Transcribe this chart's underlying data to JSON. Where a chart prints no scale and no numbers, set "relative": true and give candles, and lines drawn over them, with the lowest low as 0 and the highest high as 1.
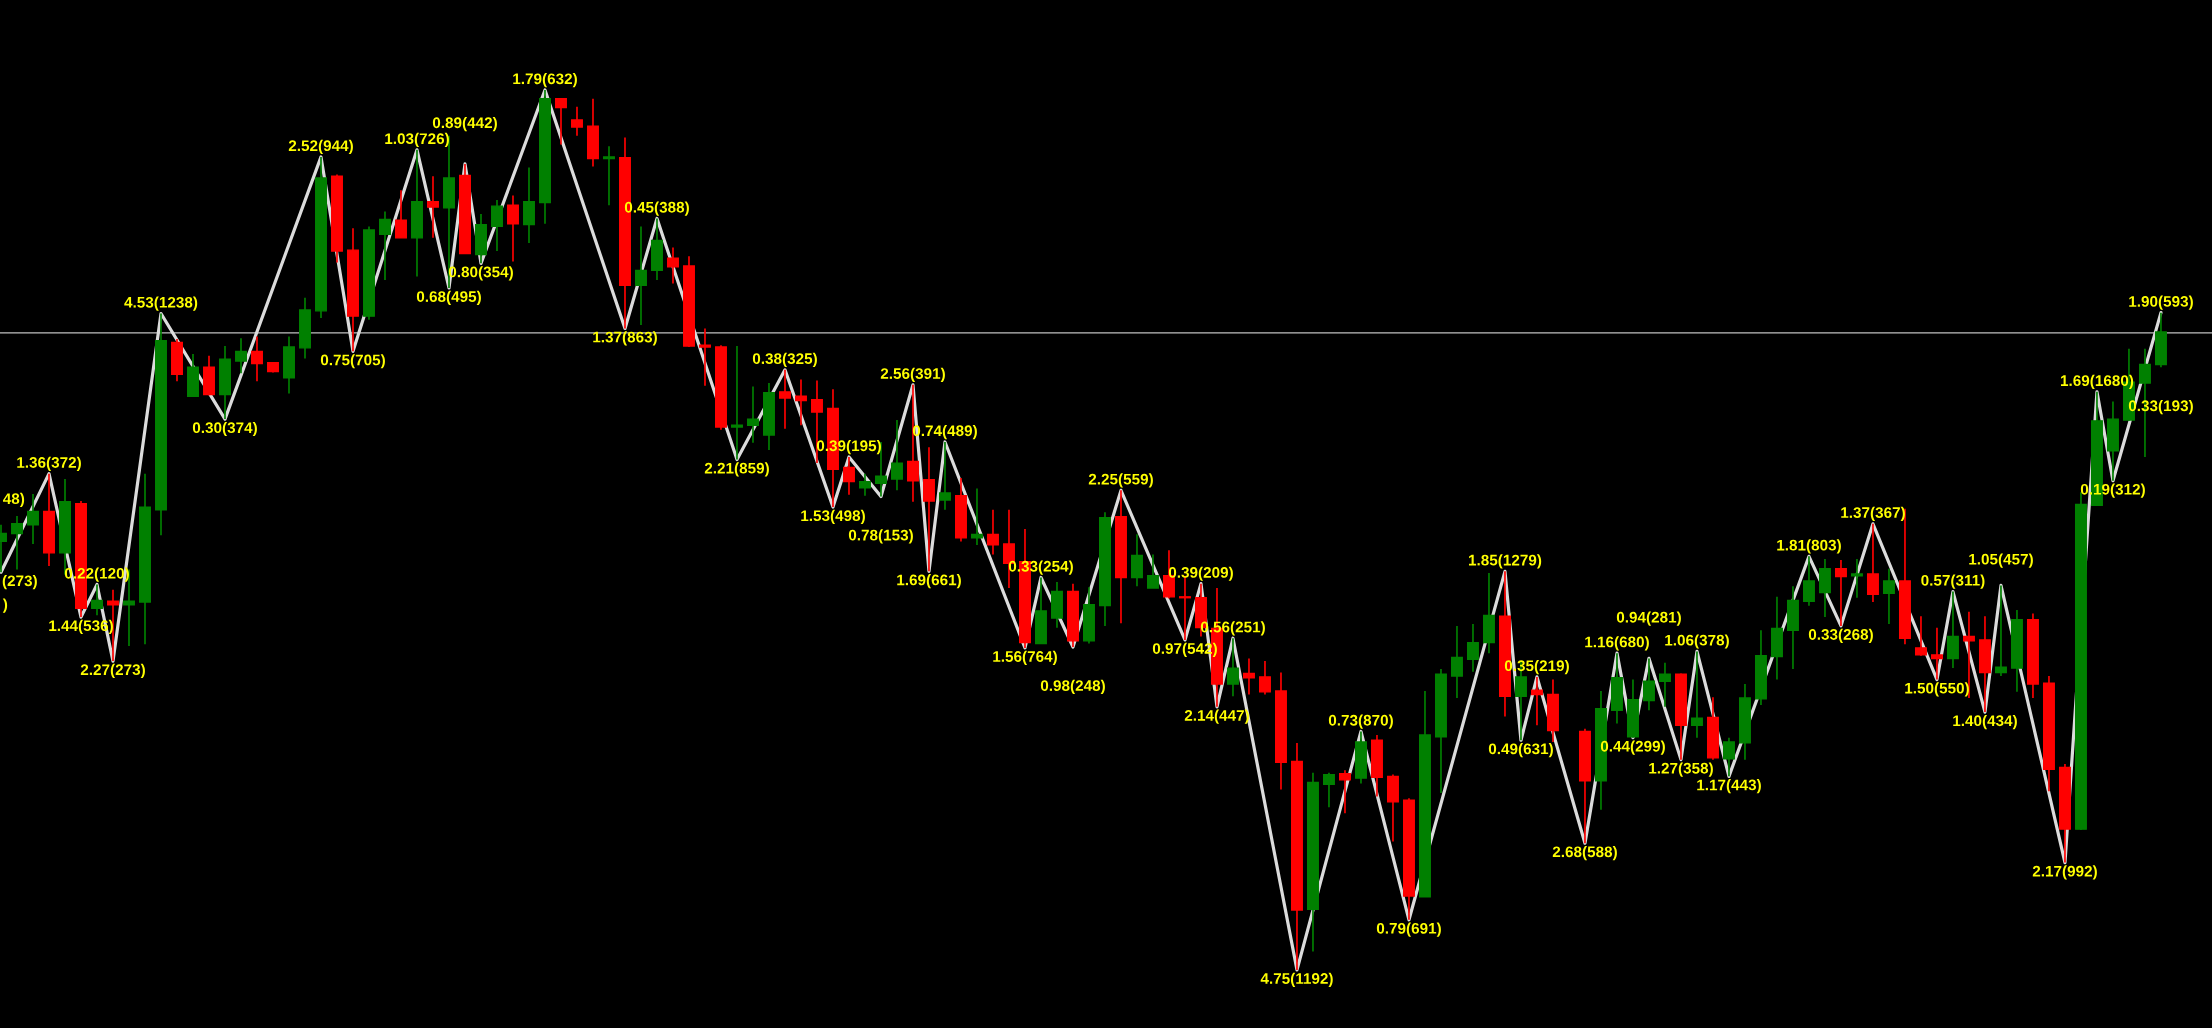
{
  "chart_data": {
    "type": "candlestick",
    "relative": true,
    "categories": [
      null,
      null,
      null,
      null,
      null,
      null,
      null,
      null,
      null,
      null,
      null,
      null,
      null,
      null,
      null,
      null,
      null,
      null,
      null,
      null,
      null,
      null,
      null,
      null,
      null,
      null,
      null,
      null,
      null,
      null,
      null,
      null,
      null,
      null,
      null,
      null,
      null,
      null,
      null,
      null,
      null,
      null,
      null,
      null,
      null,
      null,
      null,
      null,
      null,
      null,
      null,
      null,
      null,
      null,
      null,
      null,
      null,
      null,
      null,
      null,
      null,
      null,
      null,
      null,
      null,
      null,
      null,
      null,
      null,
      null,
      null,
      null,
      null,
      null,
      null,
      null,
      null,
      null,
      null,
      null,
      null,
      null,
      null,
      null,
      null,
      null,
      null,
      null,
      null,
      null,
      null,
      null,
      null,
      null,
      null,
      null,
      null,
      null,
      null,
      null,
      null,
      null,
      null,
      null,
      null,
      null,
      null,
      null,
      null,
      null,
      null,
      null,
      null,
      null,
      null,
      null,
      null,
      null,
      null,
      null,
      null,
      null,
      null,
      null,
      null,
      null,
      null,
      null,
      null,
      null,
      null,
      null,
      null,
      null,
      null,
      null
    ],
    "ohlc": [
      [
        0.487,
        0.506,
        0.452,
        0.496
      ],
      [
        0.496,
        0.516,
        0.455,
        0.507
      ],
      [
        0.506,
        0.541,
        0.484,
        0.521
      ],
      [
        0.521,
        0.564,
        0.459,
        0.474
      ],
      [
        0.474,
        0.558,
        0.449,
        0.532
      ],
      [
        0.53,
        0.533,
        0.401,
        0.411
      ],
      [
        0.411,
        0.438,
        0.403,
        0.42
      ],
      [
        0.419,
        0.432,
        0.351,
        0.415
      ],
      [
        0.415,
        0.455,
        0.368,
        0.419
      ],
      [
        0.418,
        0.564,
        0.37,
        0.526
      ],
      [
        0.523,
        0.746,
        0.494,
        0.715
      ],
      [
        0.713,
        0.717,
        0.669,
        0.677
      ],
      [
        0.652,
        0.7,
        0.651,
        0.685
      ],
      [
        0.685,
        0.698,
        0.653,
        0.654
      ],
      [
        0.654,
        0.709,
        0.626,
        0.694
      ],
      [
        0.692,
        0.718,
        0.678,
        0.703
      ],
      [
        0.703,
        0.72,
        0.669,
        0.689
      ],
      [
        0.69,
        0.691,
        0.679,
        0.68
      ],
      [
        0.673,
        0.72,
        0.655,
        0.708
      ],
      [
        0.707,
        0.764,
        0.695,
        0.75
      ],
      [
        0.749,
        0.924,
        0.741,
        0.9
      ],
      [
        0.902,
        0.904,
        0.804,
        0.817
      ],
      [
        0.818,
        0.843,
        0.703,
        0.743
      ],
      [
        0.743,
        0.845,
        0.739,
        0.841
      ],
      [
        0.836,
        0.862,
        0.784,
        0.853
      ],
      [
        0.852,
        0.886,
        0.832,
        0.832
      ],
      [
        0.832,
        0.932,
        0.788,
        0.873
      ],
      [
        0.873,
        0.902,
        0.832,
        0.867
      ],
      [
        0.866,
        0.948,
        0.775,
        0.9
      ],
      [
        0.903,
        0.916,
        0.814,
        0.814
      ],
      [
        0.813,
        0.859,
        0.803,
        0.847
      ],
      [
        0.845,
        0.875,
        0.817,
        0.868
      ],
      [
        0.869,
        0.88,
        0.805,
        0.848
      ],
      [
        0.847,
        0.912,
        0.826,
        0.873
      ],
      [
        0.872,
        1.0,
        0.848,
        0.99
      ],
      [
        0.99,
        0.99,
        0.938,
        0.98
      ],
      [
        0.966,
        0.981,
        0.948,
        0.958
      ],
      [
        0.959,
        0.99,
        0.913,
        0.922
      ],
      [
        0.922,
        0.936,
        0.869,
        0.924
      ],
      [
        0.923,
        0.946,
        0.729,
        0.778
      ],
      [
        0.778,
        0.845,
        0.733,
        0.795
      ],
      [
        0.795,
        0.854,
        0.784,
        0.829
      ],
      [
        0.809,
        0.821,
        0.78,
        0.799
      ],
      [
        0.8,
        0.811,
        0.708,
        0.709
      ],
      [
        0.71,
        0.729,
        0.664,
        0.708
      ],
      [
        0.708,
        0.71,
        0.614,
        0.617
      ],
      [
        0.617,
        0.709,
        0.58,
        0.619
      ],
      [
        0.619,
        0.663,
        0.599,
        0.626
      ],
      [
        0.608,
        0.667,
        0.591,
        0.656
      ],
      [
        0.657,
        0.682,
        0.615,
        0.65
      ],
      [
        0.652,
        0.671,
        0.619,
        0.647
      ],
      [
        0.648,
        0.67,
        0.576,
        0.634
      ],
      [
        0.638,
        0.66,
        0.526,
        0.569
      ],
      [
        0.571,
        0.583,
        0.54,
        0.555
      ],
      [
        0.548,
        0.564,
        0.539,
        0.555
      ],
      [
        0.553,
        0.6,
        0.538,
        0.561
      ],
      [
        0.558,
        0.625,
        0.545,
        0.576
      ],
      [
        0.578,
        0.665,
        0.532,
        0.556
      ],
      [
        0.557,
        0.594,
        0.453,
        0.533
      ],
      [
        0.534,
        0.6,
        0.523,
        0.542
      ],
      [
        0.539,
        0.559,
        0.487,
        0.491
      ],
      [
        0.491,
        0.547,
        0.483,
        0.495
      ],
      [
        0.495,
        0.523,
        0.472,
        0.483
      ],
      [
        0.484,
        0.523,
        0.434,
        0.462
      ],
      [
        0.464,
        0.501,
        0.366,
        0.372
      ],
      [
        0.371,
        0.446,
        0.371,
        0.408
      ],
      [
        0.4,
        0.441,
        0.389,
        0.43
      ],
      [
        0.43,
        0.439,
        0.367,
        0.374
      ],
      [
        0.374,
        0.435,
        0.371,
        0.415
      ],
      [
        0.414,
        0.52,
        0.391,
        0.514
      ],
      [
        0.515,
        0.545,
        0.394,
        0.446
      ],
      [
        0.446,
        0.495,
        0.436,
        0.471
      ],
      [
        0.434,
        0.472,
        0.434,
        0.448
      ],
      [
        0.448,
        0.477,
        0.422,
        0.424
      ],
      [
        0.424,
        0.448,
        0.375,
        0.423
      ],
      [
        0.423,
        0.439,
        0.379,
        0.389
      ],
      [
        0.388,
        0.434,
        0.299,
        0.325
      ],
      [
        0.325,
        0.377,
        0.311,
        0.343
      ],
      [
        0.337,
        0.354,
        0.313,
        0.332
      ],
      [
        0.333,
        0.351,
        0.313,
        0.316
      ],
      [
        0.317,
        0.338,
        0.205,
        0.236
      ],
      [
        0.237,
        0.258,
        0.0,
        0.068
      ],
      [
        0.069,
        0.224,
        0.021,
        0.213
      ],
      [
        0.211,
        0.224,
        0.185,
        0.222
      ],
      [
        0.223,
        0.227,
        0.178,
        0.216
      ],
      [
        0.218,
        0.271,
        0.212,
        0.259
      ],
      [
        0.261,
        0.267,
        0.197,
        0.219
      ],
      [
        0.22,
        0.222,
        0.146,
        0.191
      ],
      [
        0.193,
        0.195,
        0.057,
        0.084
      ],
      [
        0.083,
        0.317,
        0.083,
        0.267
      ],
      [
        0.265,
        0.342,
        0.201,
        0.336
      ],
      [
        0.334,
        0.391,
        0.309,
        0.355
      ],
      [
        0.353,
        0.393,
        0.339,
        0.372
      ],
      [
        0.372,
        0.451,
        0.36,
        0.403
      ],
      [
        0.402,
        0.453,
        0.288,
        0.311
      ],
      [
        0.311,
        0.351,
        0.261,
        0.333
      ],
      [
        0.318,
        0.333,
        0.278,
        0.313
      ],
      [
        0.313,
        0.33,
        0.259,
        0.272
      ],
      null,
      [
        0.271,
        0.274,
        0.144,
        0.215
      ],
      [
        0.215,
        0.317,
        0.182,
        0.297
      ],
      [
        0.295,
        0.36,
        0.28,
        0.332
      ],
      [
        0.265,
        0.33,
        0.264,
        0.307
      ],
      [
        0.306,
        0.354,
        0.295,
        0.328
      ],
      [
        0.328,
        0.349,
        0.299,
        0.336
      ],
      [
        0.336,
        0.337,
        0.239,
        0.278
      ],
      [
        0.278,
        0.362,
        0.264,
        0.286
      ],
      [
        0.287,
        0.31,
        0.239,
        0.241
      ],
      [
        0.24,
        0.264,
        0.22,
        0.259
      ],
      [
        0.258,
        0.325,
        0.239,
        0.309
      ],
      [
        0.308,
        0.386,
        0.301,
        0.357
      ],
      [
        0.356,
        0.424,
        0.33,
        0.388
      ],
      [
        0.386,
        0.436,
        0.342,
        0.42
      ],
      [
        0.419,
        0.47,
        0.414,
        0.442
      ],
      [
        0.429,
        0.467,
        0.401,
        0.456
      ],
      [
        0.456,
        0.466,
        0.391,
        0.447
      ],
      [
        0.448,
        0.467,
        0.423,
        0.45
      ],
      [
        0.45,
        0.507,
        0.418,
        0.427
      ],
      [
        0.428,
        0.456,
        0.393,
        0.442
      ],
      [
        0.442,
        0.524,
        0.37,
        0.377
      ],
      [
        0.366,
        0.402,
        0.357,
        0.358
      ],
      [
        0.358,
        0.389,
        0.33,
        0.354
      ],
      [
        0.354,
        0.43,
        0.343,
        0.379
      ],
      [
        0.379,
        0.407,
        0.309,
        0.374
      ],
      [
        0.375,
        0.402,
        0.293,
        0.338
      ],
      [
        0.338,
        0.437,
        0.334,
        0.344
      ],
      [
        0.343,
        0.409,
        0.316,
        0.398
      ],
      [
        0.398,
        0.405,
        0.309,
        0.325
      ],
      [
        0.326,
        0.334,
        0.203,
        0.228
      ],
      [
        0.23,
        0.234,
        0.122,
        0.16
      ],
      [
        0.16,
        0.543,
        0.159,
        0.529
      ],
      [
        0.528,
        0.657,
        0.528,
        0.624
      ],
      [
        0.59,
        0.646,
        0.556,
        0.626
      ],
      [
        0.625,
        0.706,
        0.624,
        0.668
      ],
      [
        0.667,
        0.706,
        0.583,
        0.688
      ],
      [
        0.688,
        0.747,
        0.685,
        0.725
      ]
    ],
    "colors": [
      "#008000",
      "#008000",
      "#008000",
      "#ff0000",
      "#008000",
      "#ff0000",
      "#008000",
      "#ff0000",
      "#008000",
      "#008000",
      "#008000",
      "#ff0000",
      "#008000",
      "#ff0000",
      "#008000",
      "#008000",
      "#ff0000",
      "#ff0000",
      "#008000",
      "#008000",
      "#008000",
      "#ff0000",
      "#ff0000",
      "#008000",
      "#008000",
      "#ff0000",
      "#008000",
      "#ff0000",
      "#008000",
      "#ff0000",
      "#008000",
      "#008000",
      "#ff0000",
      "#008000",
      "#008000",
      "#ff0000",
      "#ff0000",
      "#ff0000",
      "#008000",
      "#ff0000",
      "#008000",
      "#008000",
      "#ff0000",
      "#ff0000",
      "#ff0000",
      "#ff0000",
      "#008000",
      "#008000",
      "#008000",
      "#ff0000",
      "#ff0000",
      "#ff0000",
      "#ff0000",
      "#ff0000",
      "#008000",
      "#008000",
      "#008000",
      "#ff0000",
      "#ff0000",
      "#008000",
      "#ff0000",
      "#008000",
      "#ff0000",
      "#ff0000",
      "#ff0000",
      "#008000",
      "#008000",
      "#ff0000",
      "#008000",
      "#008000",
      "#ff0000",
      "#008000",
      "#008000",
      "#ff0000",
      "#ff0000",
      "#ff0000",
      "#ff0000",
      "#008000",
      "#ff0000",
      "#ff0000",
      "#ff0000",
      "#ff0000",
      "#008000",
      "#008000",
      "#ff0000",
      "#008000",
      "#ff0000",
      "#ff0000",
      "#ff0000",
      "#008000",
      "#008000",
      "#008000",
      "#008000",
      "#008000",
      "#ff0000",
      "#008000",
      "#ff0000",
      "#ff0000",
      null,
      "#ff0000",
      "#008000",
      "#008000",
      "#008000",
      "#008000",
      "#008000",
      "#ff0000",
      "#008000",
      "#ff0000",
      "#008000",
      "#008000",
      "#008000",
      "#008000",
      "#008000",
      "#008000",
      "#008000",
      "#ff0000",
      "#008000",
      "#ff0000",
      "#008000",
      "#ff0000",
      "#ff0000",
      "#ff0000",
      "#008000",
      "#ff0000",
      "#ff0000",
      "#008000",
      "#008000",
      "#ff0000",
      "#ff0000",
      "#ff0000",
      "#008000",
      "#008000",
      "#008000",
      "#008000",
      "#008000",
      "#008000"
    ],
    "series": [
      {
        "type": "line",
        "color": "#dcdcdc",
        "values": [
          0.452,
          null,
          null,
          0.564,
          null,
          0.401,
          0.438,
          0.351,
          null,
          null,
          0.746,
          null,
          null,
          null,
          0.626,
          null,
          null,
          null,
          null,
          null,
          0.924,
          null,
          0.703,
          null,
          null,
          null,
          0.932,
          null,
          0.775,
          0.916,
          0.803,
          null,
          null,
          null,
          1.0,
          null,
          null,
          null,
          null,
          0.729,
          null,
          0.854,
          null,
          null,
          null,
          null,
          0.58,
          null,
          null,
          0.682,
          null,
          null,
          0.526,
          0.583,
          null,
          0.538,
          null,
          0.665,
          0.453,
          0.6,
          null,
          null,
          null,
          null,
          0.366,
          0.446,
          null,
          0.367,
          null,
          null,
          0.545,
          null,
          null,
          null,
          0.375,
          0.439,
          0.299,
          0.377,
          null,
          null,
          null,
          0.0,
          null,
          null,
          null,
          0.271,
          null,
          null,
          0.057,
          null,
          null,
          null,
          null,
          null,
          0.453,
          0.261,
          0.333,
          null,
          null,
          0.144,
          null,
          0.36,
          0.264,
          0.354,
          null,
          0.239,
          0.362,
          null,
          0.22,
          null,
          null,
          null,
          null,
          0.47,
          null,
          0.391,
          null,
          0.507,
          null,
          null,
          null,
          0.33,
          0.43,
          null,
          0.293,
          0.437,
          null,
          null,
          null,
          0.122,
          null,
          0.657,
          0.556,
          null,
          null,
          0.747
        ]
      }
    ],
    "ref_lines": [
      {
        "axis": "y",
        "value": 0.724,
        "color": "#c0c0c0"
      }
    ],
    "annotations": [
      "48)",
      ")",
      {
        "text": "(273)",
        "y": 0.452
      },
      {
        "text": "1.36(372)",
        "y": 0.564
      },
      {
        "text": "1.44(536)",
        "y": 0.401
      },
      {
        "text": "0.22(120)",
        "y": 0.438
      },
      {
        "text": "2.27(273)",
        "y": 0.351
      },
      {
        "text": "4.53(1238)",
        "y": 0.746
      },
      {
        "text": "0.30(374)",
        "y": 0.626
      },
      {
        "text": "2.52(944)",
        "y": 0.924
      },
      {
        "text": "0.75(705)",
        "y": 0.703
      },
      {
        "text": "1.03(726)",
        "y": 0.932
      },
      {
        "text": "0.68(495)",
        "y": 0.775
      },
      {
        "text": "0.89(442)",
        "y": 0.916
      },
      {
        "text": "0.80(354)",
        "y": 0.803
      },
      {
        "text": "1.79(632)",
        "y": 1.0
      },
      {
        "text": "1.37(863)",
        "y": 0.729
      },
      {
        "text": "0.45(388)",
        "y": 0.854
      },
      {
        "text": "2.21(859)",
        "y": 0.58
      },
      {
        "text": "0.38(325)",
        "y": 0.682
      },
      {
        "text": "1.53(498)",
        "y": 0.526
      },
      {
        "text": "0.39(195)",
        "y": 0.583
      },
      {
        "text": "0.78(153)",
        "y": 0.538
      },
      {
        "text": "2.56(391)",
        "y": 0.665
      },
      {
        "text": "1.69(661)",
        "y": 0.453
      },
      {
        "text": "0.74(489)",
        "y": 0.6
      },
      {
        "text": "1.56(764)",
        "y": 0.366
      },
      {
        "text": "0.33(254)",
        "y": 0.446
      },
      {
        "text": "0.98(248)",
        "y": 0.367
      },
      {
        "text": "2.25(559)",
        "y": 0.545
      },
      {
        "text": "0.97(542)",
        "y": 0.375
      },
      {
        "text": "0.39(209)",
        "y": 0.439
      },
      {
        "text": "2.14(447)",
        "y": 0.299
      },
      {
        "text": "0.56(251)",
        "y": 0.377
      },
      {
        "text": "4.75(1192)",
        "y": 0.0
      },
      {
        "text": "0.73(870)",
        "y": 0.271
      },
      {
        "text": "0.79(691)",
        "y": 0.057
      },
      {
        "text": "1.85(1279)",
        "y": 0.453
      },
      {
        "text": "0.49(631)",
        "y": 0.261
      },
      {
        "text": "0.35(219)",
        "y": 0.333
      },
      {
        "text": "2.68(588)",
        "y": 0.144
      },
      {
        "text": "1.16(680)",
        "y": 0.36
      },
      {
        "text": "0.44(299)",
        "y": 0.264
      },
      {
        "text": "0.94(281)",
        "y": 0.354
      },
      {
        "text": "1.27(358)",
        "y": 0.239
      },
      {
        "text": "1.06(378)",
        "y": 0.362
      },
      {
        "text": "1.17(443)",
        "y": 0.22
      },
      {
        "text": "1.81(803)",
        "y": 0.47
      },
      {
        "text": "0.33(268)",
        "y": 0.391
      },
      {
        "text": "1.37(367)",
        "y": 0.507
      },
      {
        "text": "1.50(550)",
        "y": 0.33
      },
      {
        "text": "0.57(311)",
        "y": 0.43
      },
      {
        "text": "1.40(434)",
        "y": 0.293
      },
      {
        "text": "1.05(457)",
        "y": 0.437
      },
      {
        "text": "2.17(992)",
        "y": 0.122
      },
      {
        "text": "1.69(1680)",
        "y": 0.657
      },
      {
        "text": "0.19(312)",
        "y": 0.556
      },
      {
        "text": "1.90(593)",
        "y": 0.747
      },
      {
        "text": "0.33(193)",
        "y": 0.685
      }
    ]
  }
}
